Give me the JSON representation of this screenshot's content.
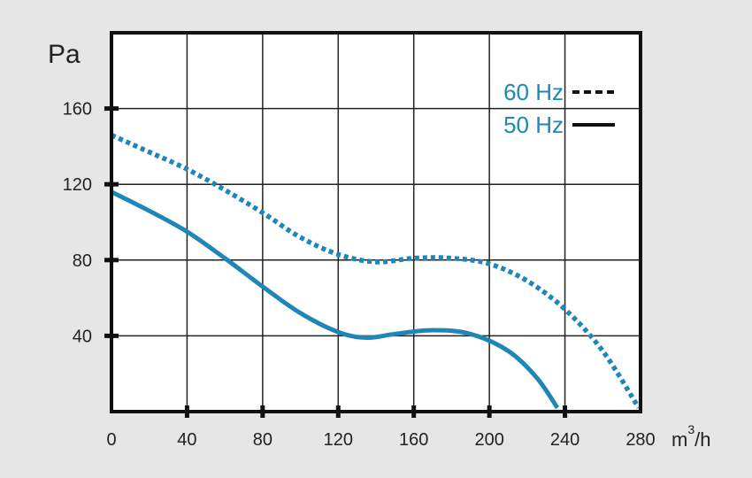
{
  "chart_data": {
    "type": "line",
    "ylabel": "Pa",
    "xlabel": {
      "base": "m",
      "sup": "3",
      "suffix": "/h"
    },
    "xlim": [
      0,
      280
    ],
    "ylim": [
      0,
      200
    ],
    "x_ticks": [
      0,
      40,
      80,
      120,
      160,
      200,
      240,
      280
    ],
    "y_ticks": [
      40,
      80,
      120,
      160
    ],
    "grid": true,
    "legend": "top-right",
    "series": [
      {
        "name": "60 Hz",
        "style": "dashed",
        "color": "#1f86b8",
        "points": [
          [
            0,
            146
          ],
          [
            20,
            137
          ],
          [
            40,
            128
          ],
          [
            60,
            117
          ],
          [
            80,
            105
          ],
          [
            100,
            92
          ],
          [
            120,
            83
          ],
          [
            140,
            79
          ],
          [
            160,
            81
          ],
          [
            180,
            81
          ],
          [
            200,
            78
          ],
          [
            220,
            69
          ],
          [
            240,
            54
          ],
          [
            260,
            32
          ],
          [
            279,
            2
          ]
        ]
      },
      {
        "name": "50 Hz",
        "style": "solid",
        "color": "#1f86b8",
        "points": [
          [
            0,
            116
          ],
          [
            20,
            106
          ],
          [
            40,
            95
          ],
          [
            60,
            81
          ],
          [
            80,
            66
          ],
          [
            100,
            52
          ],
          [
            120,
            42
          ],
          [
            135,
            39
          ],
          [
            150,
            41
          ],
          [
            170,
            43
          ],
          [
            190,
            41
          ],
          [
            210,
            32
          ],
          [
            225,
            18
          ],
          [
            236,
            2
          ]
        ]
      }
    ]
  }
}
